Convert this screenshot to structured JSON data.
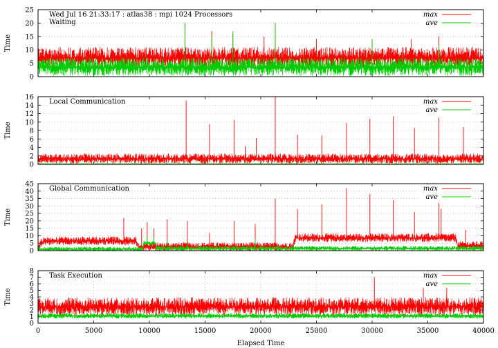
{
  "chart_data": [
    {
      "type": "line",
      "title": "Wed Jul 16 21:33:17 : atlas38 : mpi 1024 Processors",
      "panel_label": "Waiting",
      "xlabel": "",
      "ylabel": "Time",
      "xlim": [
        0,
        40000
      ],
      "ylim": [
        0,
        25
      ],
      "yticks": [
        0,
        5,
        10,
        15,
        20,
        25
      ],
      "grid": true,
      "legend": "top-right",
      "series": [
        {
          "name": "max",
          "color": "#ff0000",
          "baseline": [
            [
              0,
              7
            ],
            [
              40000,
              7
            ]
          ],
          "noise": 4,
          "spikes": [
            [
              13200,
              20
            ],
            [
              15600,
              17
            ],
            [
              17500,
              16
            ],
            [
              20300,
              15
            ],
            [
              21300,
              20
            ],
            [
              25000,
              14
            ],
            [
              30000,
              14
            ],
            [
              33500,
              14
            ],
            [
              36000,
              15
            ],
            [
              38500,
              11
            ]
          ]
        },
        {
          "name": "ave",
          "color": "#00cc00",
          "baseline": [
            [
              0,
              3.5
            ],
            [
              40000,
              3.5
            ]
          ],
          "noise": 3.5,
          "spikes": [
            [
              13200,
              20
            ],
            [
              15600,
              15
            ],
            [
              17500,
              17
            ],
            [
              21300,
              20
            ],
            [
              30000,
              14
            ],
            [
              36000,
              12
            ]
          ]
        }
      ]
    },
    {
      "type": "line",
      "title": "",
      "panel_label": "Local Communication",
      "xlabel": "",
      "ylabel": "Time",
      "xlim": [
        0,
        40000
      ],
      "ylim": [
        0,
        16
      ],
      "yticks": [
        0,
        2,
        4,
        6,
        8,
        10,
        12,
        14,
        16
      ],
      "grid": true,
      "legend": "top-right",
      "series": [
        {
          "name": "max",
          "color": "#ff0000",
          "baseline": [
            [
              0,
              1.3
            ],
            [
              40000,
              1.3
            ]
          ],
          "noise": 1.2,
          "spikes": [
            [
              13300,
              15
            ],
            [
              15400,
              9.5
            ],
            [
              17600,
              10.5
            ],
            [
              18600,
              4.3
            ],
            [
              19600,
              6.2
            ],
            [
              21300,
              16
            ],
            [
              23300,
              7
            ],
            [
              25500,
              6.8
            ],
            [
              27700,
              9.8
            ],
            [
              29800,
              10.8
            ],
            [
              31900,
              11.3
            ],
            [
              33800,
              8.6
            ],
            [
              36000,
              11
            ],
            [
              38200,
              8.8
            ]
          ]
        },
        {
          "name": "ave",
          "color": "#00cc00",
          "baseline": [
            [
              0,
              0.1
            ],
            [
              40000,
              0.1
            ]
          ],
          "noise": 0.1,
          "spikes": []
        }
      ]
    },
    {
      "type": "line",
      "title": "",
      "panel_label": "Global Communication",
      "xlabel": "",
      "ylabel": "Time",
      "xlim": [
        0,
        40000
      ],
      "ylim": [
        0,
        45
      ],
      "yticks": [
        0,
        5,
        10,
        15,
        20,
        25,
        30,
        35,
        40,
        45
      ],
      "grid": true,
      "legend": "top-right",
      "series": [
        {
          "name": "max",
          "color": "#ff0000",
          "baseline": [
            [
              0,
              2.5
            ],
            [
              500,
              6.5
            ],
            [
              8800,
              6.5
            ],
            [
              9000,
              2.5
            ],
            [
              22900,
              2.5
            ],
            [
              23100,
              8.5
            ],
            [
              37500,
              8.5
            ],
            [
              37700,
              3.2
            ],
            [
              40000,
              3.2
            ]
          ],
          "noise": 3,
          "spikes": [
            [
              7700,
              22
            ],
            [
              9300,
              15
            ],
            [
              9800,
              19
            ],
            [
              10400,
              15
            ],
            [
              11600,
              21
            ],
            [
              13400,
              20
            ],
            [
              15400,
              12
            ],
            [
              17600,
              20
            ],
            [
              19500,
              18
            ],
            [
              21300,
              35
            ],
            [
              23300,
              28
            ],
            [
              25500,
              31
            ],
            [
              27700,
              42
            ],
            [
              29800,
              38
            ],
            [
              31900,
              34
            ],
            [
              33800,
              26
            ],
            [
              36000,
              32
            ],
            [
              36200,
              28
            ],
            [
              38400,
              14
            ]
          ]
        },
        {
          "name": "ave",
          "color": "#00cc00",
          "baseline": [
            [
              0,
              1
            ],
            [
              9400,
              1
            ],
            [
              9500,
              5
            ],
            [
              10500,
              5
            ],
            [
              10600,
              1.5
            ],
            [
              40000,
              1.5
            ]
          ],
          "noise": 1.5,
          "spikes": [
            [
              9800,
              10
            ],
            [
              10400,
              9
            ],
            [
              11600,
              7
            ],
            [
              13400,
              6
            ],
            [
              19500,
              8
            ]
          ]
        }
      ]
    },
    {
      "type": "line",
      "title": "",
      "panel_label": "Task Execution",
      "xlabel": "Elapsed Time",
      "ylabel": "Time",
      "xlim": [
        0,
        40000
      ],
      "ylim": [
        0,
        8
      ],
      "yticks": [
        0,
        1,
        2,
        3,
        4,
        5,
        6,
        7,
        8
      ],
      "xticks": [
        0,
        5000,
        10000,
        15000,
        20000,
        25000,
        30000,
        35000,
        40000
      ],
      "grid": true,
      "legend": "top-right",
      "series": [
        {
          "name": "max",
          "color": "#ff0000",
          "baseline": [
            [
              0,
              2.5
            ],
            [
              40000,
              2.5
            ]
          ],
          "noise": 1.4,
          "spikes": [
            [
              30200,
              7
            ],
            [
              34600,
              5.5
            ],
            [
              36700,
              5.4
            ]
          ]
        },
        {
          "name": "ave",
          "color": "#00cc00",
          "baseline": [
            [
              0,
              1.1
            ],
            [
              40000,
              1.1
            ]
          ],
          "noise": 0.4,
          "spikes": []
        }
      ]
    }
  ]
}
